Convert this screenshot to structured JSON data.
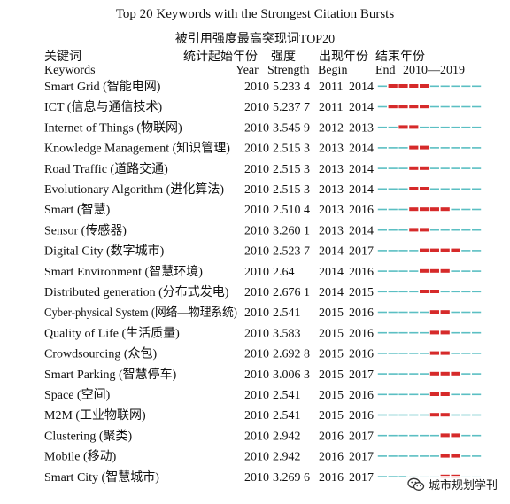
{
  "chart_data": {
    "type": "table",
    "title": "Top 20 Keywords with the Strongest Citation Bursts",
    "subtitle": "被引用强度最高突现词TOP20",
    "columns_zh": {
      "keywords": "关键词",
      "year": "统计起始年份",
      "strength": "强度",
      "begin": "出现年份",
      "end": "结束年份"
    },
    "columns_en": {
      "keywords": "Keywords",
      "year": "Year",
      "strength": "Strength",
      "begin": "Begin",
      "end": "End",
      "range": "2010—2019"
    },
    "timeline": {
      "start": 2010,
      "end": 2019
    },
    "colors": {
      "burst": "#d62a2a",
      "base": "#5bbfc3"
    },
    "rows": [
      {
        "keyword": "Smart Grid (智能电网)",
        "year": "2010",
        "strength": "5.233 4",
        "begin": 2011,
        "end": 2014
      },
      {
        "keyword": "ICT (信息与通信技术)",
        "year": "2010",
        "strength": "5.237 7",
        "begin": 2011,
        "end": 2014
      },
      {
        "keyword": "Internet of Things (物联网)",
        "year": "2010",
        "strength": "3.545 9",
        "begin": 2012,
        "end": 2013
      },
      {
        "keyword": "Knowledge Management (知识管理)",
        "year": "2010",
        "strength": "2.515 3",
        "begin": 2013,
        "end": 2014
      },
      {
        "keyword": "Road Traffic (道路交通)",
        "year": "2010",
        "strength": "2.515 3",
        "begin": 2013,
        "end": 2014
      },
      {
        "keyword": "Evolutionary Algorithm (进化算法)",
        "year": "2010",
        "strength": "2.515 3",
        "begin": 2013,
        "end": 2014
      },
      {
        "keyword": "Smart (智慧)",
        "year": "2010",
        "strength": "2.510 4",
        "begin": 2013,
        "end": 2016
      },
      {
        "keyword": "Sensor (传感器)",
        "year": "2010",
        "strength": "3.260 1",
        "begin": 2013,
        "end": 2014
      },
      {
        "keyword": "Digital City (数字城市)",
        "year": "2010",
        "strength": "2.523 7",
        "begin": 2014,
        "end": 2017
      },
      {
        "keyword": "Smart Environment (智慧环境)",
        "year": "2010",
        "strength": "2.64",
        "begin": 2014,
        "end": 2016
      },
      {
        "keyword": "Distributed generation (分布式发电)",
        "year": "2010",
        "strength": "2.676 1",
        "begin": 2014,
        "end": 2015
      },
      {
        "keyword": "Cyber-physical System (网络—物理系统)",
        "year": "2010",
        "strength": "2.541",
        "begin": 2015,
        "end": 2016
      },
      {
        "keyword": "Quality of Life (生活质量)",
        "year": "2010",
        "strength": "3.583",
        "begin": 2015,
        "end": 2016
      },
      {
        "keyword": "Crowdsourcing (众包)",
        "year": "2010",
        "strength": "2.692 8",
        "begin": 2015,
        "end": 2016
      },
      {
        "keyword": "Smart Parking (智慧停车)",
        "year": "2010",
        "strength": "3.006 3",
        "begin": 2015,
        "end": 2017
      },
      {
        "keyword": "Space (空间)",
        "year": "2010",
        "strength": "2.541",
        "begin": 2015,
        "end": 2016
      },
      {
        "keyword": "M2M (工业物联网)",
        "year": "2010",
        "strength": "2.541",
        "begin": 2015,
        "end": 2016
      },
      {
        "keyword": "Clustering (聚类)",
        "year": "2010",
        "strength": "2.942",
        "begin": 2016,
        "end": 2017
      },
      {
        "keyword": "Mobile (移动)",
        "year": "2010",
        "strength": "2.942",
        "begin": 2016,
        "end": 2017
      },
      {
        "keyword": "Smart City (智慧城市)",
        "year": "2010",
        "strength": "3.269 6",
        "begin": 2016,
        "end": 2017
      }
    ]
  },
  "watermark": {
    "text": "城市规划学刊",
    "icon": "wechat-icon"
  }
}
